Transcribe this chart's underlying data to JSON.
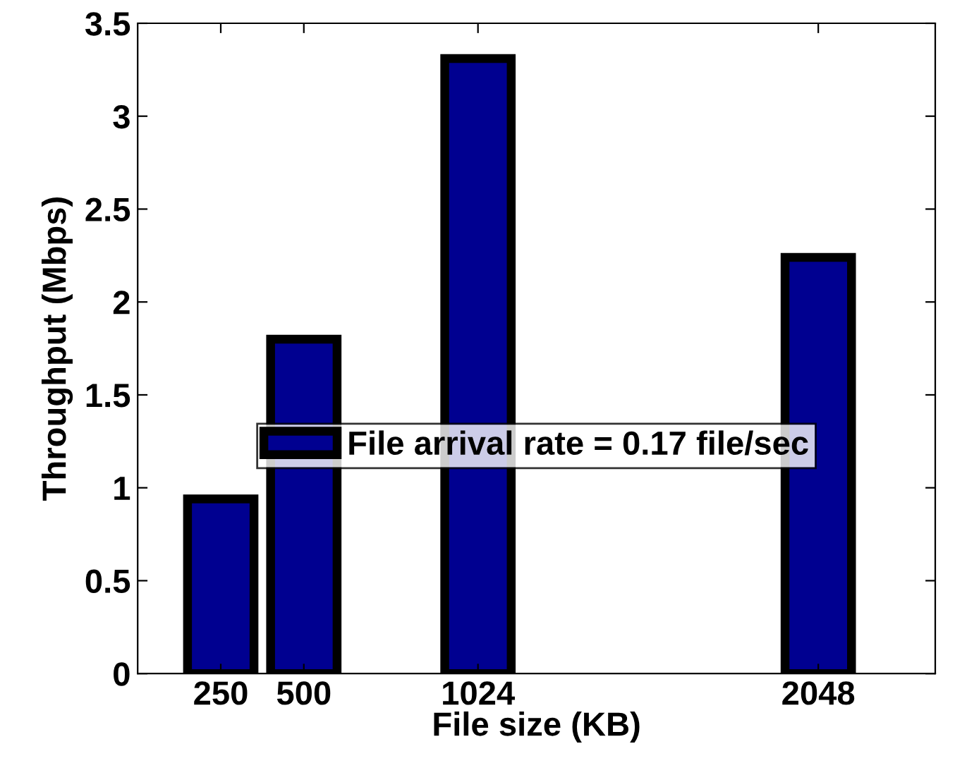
{
  "chart_data": {
    "type": "bar",
    "xlabel": "File size (KB)",
    "ylabel": "Throughput (Mbps)",
    "x": [
      250,
      500,
      1024,
      2048
    ],
    "series": [
      {
        "name": "File arrival rate = 0.17 file/sec",
        "color": "#000090",
        "values": [
          0.94,
          1.8,
          3.31,
          2.24
        ]
      }
    ],
    "xlim": [
      0,
      2400
    ],
    "xticks": [
      250,
      500,
      1024,
      2048
    ],
    "ylim": [
      0,
      3.5
    ],
    "yticks": [
      0,
      0.5,
      1,
      1.5,
      2,
      2.5,
      3,
      3.5
    ],
    "legend": "center",
    "grid": false
  }
}
